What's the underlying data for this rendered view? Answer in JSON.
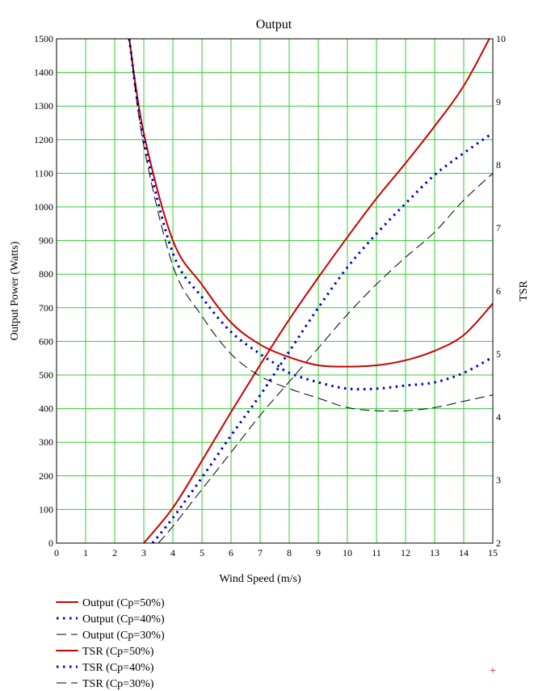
{
  "chart_data": {
    "type": "line",
    "title": "Output",
    "xlabel": "Wind Speed (m/s)",
    "ylabel": "Output Power (Watts)",
    "y2label": "TSR",
    "xlim": [
      0,
      15
    ],
    "ylim": [
      0,
      1500
    ],
    "y2lim": [
      2,
      10
    ],
    "x_ticks": [
      0,
      1,
      2,
      3,
      4,
      5,
      6,
      7,
      8,
      9,
      10,
      11,
      12,
      13,
      14,
      15
    ],
    "y_ticks": [
      0,
      100,
      200,
      300,
      400,
      500,
      600,
      700,
      800,
      900,
      1000,
      1100,
      1200,
      1300,
      1400,
      1500
    ],
    "y2_ticks": [
      2,
      3,
      4,
      5,
      6,
      7,
      8,
      9,
      10
    ],
    "grid": true,
    "grid_color": "#33cc33",
    "legend_position": "bottom-left",
    "series": [
      {
        "name": "Output (Cp=50%)",
        "axis": "left",
        "color": "#cc0000",
        "style": "solid",
        "x": [
          3,
          4,
          5,
          6,
          7,
          8,
          9,
          10,
          11,
          12,
          13,
          14,
          15
        ],
        "y": [
          0,
          105,
          245,
          390,
          530,
          665,
          790,
          910,
          1025,
          1130,
          1240,
          1360,
          1520
        ]
      },
      {
        "name": "Output (Cp=40%)",
        "axis": "left",
        "color": "#0000cc",
        "style": "dotted",
        "x": [
          3.3,
          4,
          5,
          6,
          7,
          8,
          9,
          10,
          11,
          12,
          13,
          14,
          15
        ],
        "y": [
          0,
          75,
          195,
          320,
          440,
          570,
          700,
          820,
          920,
          1010,
          1095,
          1160,
          1220
        ]
      },
      {
        "name": "Output (Cp=30%)",
        "axis": "left",
        "color": "#000000",
        "style": "dashed",
        "x": [
          3.5,
          4,
          5,
          6,
          7,
          8,
          9,
          10,
          11,
          12,
          13,
          14,
          15
        ],
        "y": [
          0,
          50,
          160,
          270,
          380,
          480,
          580,
          680,
          770,
          850,
          925,
          1020,
          1100
        ]
      },
      {
        "name": "TSR (Cp=50%)",
        "axis": "right",
        "color": "#cc0000",
        "style": "solid",
        "x": [
          2.5,
          3,
          4,
          5,
          6,
          7,
          8,
          9,
          10,
          11,
          12,
          13,
          14,
          15
        ],
        "y": [
          10,
          8.5,
          6.8,
          6.1,
          5.5,
          5.15,
          4.95,
          4.82,
          4.8,
          4.82,
          4.9,
          5.05,
          5.3,
          5.8
        ]
      },
      {
        "name": "TSR (Cp=40%)",
        "axis": "right",
        "color": "#0000cc",
        "style": "dotted",
        "x": [
          2.5,
          3,
          4,
          5,
          6,
          7,
          7.5,
          8,
          9,
          10,
          11,
          12,
          13,
          14,
          15
        ],
        "y": [
          10,
          8.4,
          6.6,
          5.9,
          5.35,
          5.0,
          4.85,
          4.7,
          4.55,
          4.45,
          4.45,
          4.5,
          4.55,
          4.7,
          4.95
        ]
      },
      {
        "name": "TSR (Cp=30%)",
        "axis": "right",
        "color": "#000000",
        "style": "dashed",
        "x": [
          2.5,
          3,
          4,
          5,
          6,
          7,
          8,
          9,
          10,
          11,
          12,
          13,
          14,
          15
        ],
        "y": [
          10,
          8.3,
          6.4,
          5.6,
          5.0,
          4.65,
          4.45,
          4.3,
          4.15,
          4.1,
          4.1,
          4.15,
          4.25,
          4.35
        ]
      }
    ]
  }
}
